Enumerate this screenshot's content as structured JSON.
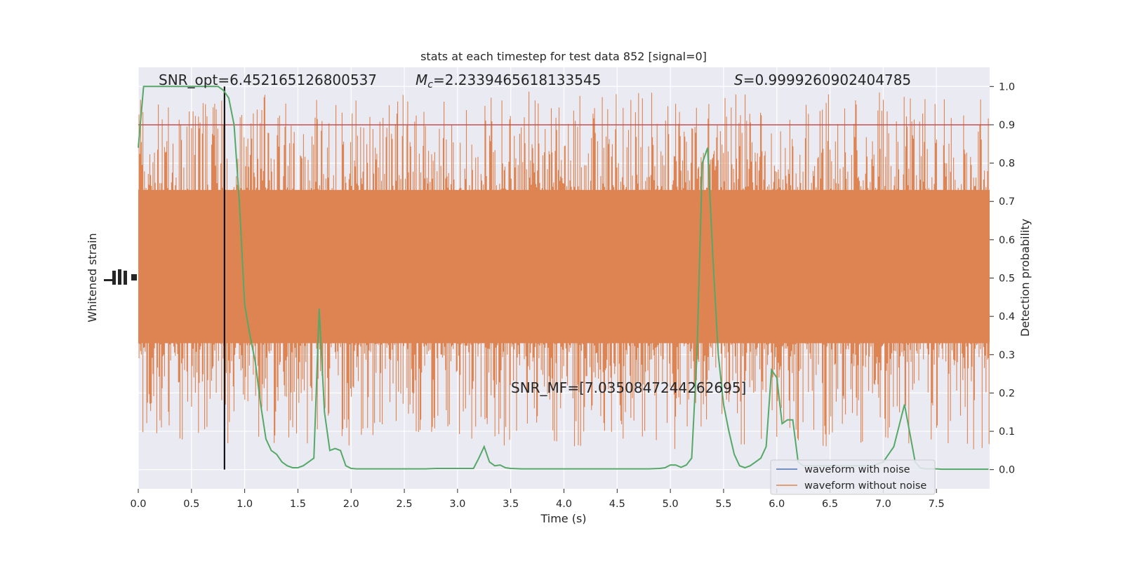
{
  "chart_data": {
    "type": "line",
    "title": "stats at each timestep for test data 852 [signal=0]",
    "xlabel": "Time (s)",
    "ylabel_left": "Whitened strain",
    "ylabel_right": "Detection probability",
    "xlim": [
      0,
      8
    ],
    "ylim_right": [
      -0.05,
      1.05
    ],
    "xticks": [
      "0.0",
      "0.5",
      "1.0",
      "1.5",
      "2.0",
      "2.5",
      "3.0",
      "3.5",
      "4.0",
      "4.5",
      "5.0",
      "5.5",
      "6.0",
      "6.5",
      "7.0",
      "7.5"
    ],
    "yticks_right": [
      "0.0",
      "0.1",
      "0.2",
      "0.3",
      "0.4",
      "0.5",
      "0.6",
      "0.7",
      "0.8",
      "0.9",
      "1.0"
    ],
    "grid": true,
    "legend_position": "lower-right",
    "annotations": {
      "snr_opt": "SNR_opt=6.452165126800537",
      "mc_symbol": "M",
      "mc_sub": "c",
      "mc_value": "=2.2339465618133545",
      "s_symbol": "S",
      "s_value": "=0.9999260902404785",
      "snr_mf": "SNR_MF=[7.035084724426269​5]"
    },
    "threshold": {
      "value": 0.9,
      "color": "#c44e52"
    },
    "marker_time": 0.81,
    "series": [
      {
        "name": "waveform with noise",
        "color": "#4c72b0",
        "values": []
      },
      {
        "name": "waveform without noise",
        "color": "#dd8452",
        "kind": "noise_band",
        "center": 0.5,
        "band_low": 0.3,
        "band_high": 0.78
      },
      {
        "color": "#55a868",
        "kind": "detection_probability",
        "x": [
          0.0,
          0.05,
          0.1,
          0.15,
          0.2,
          0.3,
          0.4,
          0.5,
          0.6,
          0.7,
          0.75,
          0.8,
          0.85,
          0.9,
          0.95,
          1.0,
          1.05,
          1.1,
          1.15,
          1.2,
          1.25,
          1.3,
          1.35,
          1.4,
          1.45,
          1.5,
          1.55,
          1.6,
          1.65,
          1.7,
          1.75,
          1.8,
          1.85,
          1.9,
          1.95,
          2.0,
          2.05,
          2.1,
          2.15,
          2.2,
          2.25,
          2.3,
          2.4,
          2.5,
          2.6,
          2.7,
          2.8,
          2.9,
          3.0,
          3.05,
          3.1,
          3.15,
          3.2,
          3.25,
          3.3,
          3.35,
          3.4,
          3.45,
          3.5,
          3.6,
          3.7,
          3.8,
          3.9,
          4.0,
          4.2,
          4.4,
          4.6,
          4.8,
          4.9,
          4.95,
          5.0,
          5.05,
          5.1,
          5.15,
          5.2,
          5.25,
          5.3,
          5.35,
          5.4,
          5.45,
          5.5,
          5.55,
          5.6,
          5.65,
          5.7,
          5.75,
          5.8,
          5.85,
          5.9,
          5.95,
          6.0,
          6.05,
          6.1,
          6.15,
          6.2,
          6.25,
          6.3,
          6.35,
          6.4,
          6.45,
          6.5,
          6.6,
          6.7,
          6.8,
          6.9,
          7.0,
          7.1,
          7.2,
          7.3,
          7.35,
          7.4,
          7.45,
          7.5,
          7.55,
          7.6,
          7.7,
          7.8,
          7.9,
          7.99
        ],
        "values": [
          0.84,
          1.0,
          1.0,
          1.0,
          1.0,
          1.0,
          1.0,
          1.0,
          1.0,
          1.0,
          1.0,
          0.99,
          0.97,
          0.9,
          0.7,
          0.43,
          0.35,
          0.28,
          0.17,
          0.08,
          0.05,
          0.04,
          0.02,
          0.01,
          0.005,
          0.005,
          0.01,
          0.02,
          0.03,
          0.42,
          0.15,
          0.05,
          0.055,
          0.05,
          0.01,
          0.003,
          0.002,
          0.002,
          0.002,
          0.002,
          0.002,
          0.002,
          0.002,
          0.002,
          0.002,
          0.002,
          0.003,
          0.003,
          0.003,
          0.003,
          0.003,
          0.003,
          0.03,
          0.06,
          0.02,
          0.01,
          0.012,
          0.005,
          0.003,
          0.002,
          0.002,
          0.002,
          0.002,
          0.002,
          0.002,
          0.002,
          0.002,
          0.002,
          0.003,
          0.005,
          0.012,
          0.012,
          0.006,
          0.012,
          0.03,
          0.3,
          0.8,
          0.84,
          0.55,
          0.3,
          0.17,
          0.1,
          0.04,
          0.01,
          0.005,
          0.01,
          0.02,
          0.03,
          0.06,
          0.26,
          0.24,
          0.12,
          0.13,
          0.13,
          0.02,
          0.01,
          0.01,
          0.01,
          0.01,
          0.01,
          0.01,
          0.01,
          0.01,
          0.01,
          0.01,
          0.02,
          0.06,
          0.17,
          0.02,
          0.004,
          0.002,
          0.002,
          0.002,
          0.001,
          0.001,
          0.001,
          0.001,
          0.001,
          0.001
        ]
      }
    ]
  }
}
